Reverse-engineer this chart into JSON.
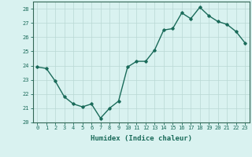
{
  "x": [
    0,
    1,
    2,
    3,
    4,
    5,
    6,
    7,
    8,
    9,
    10,
    11,
    12,
    13,
    14,
    15,
    16,
    17,
    18,
    19,
    20,
    21,
    22,
    23
  ],
  "y": [
    23.9,
    23.8,
    22.9,
    21.8,
    21.3,
    21.1,
    21.3,
    20.3,
    21.0,
    21.5,
    23.9,
    24.3,
    24.3,
    25.1,
    26.5,
    26.6,
    27.7,
    27.3,
    28.1,
    27.5,
    27.1,
    26.9,
    26.4,
    25.6
  ],
  "line_color": "#1a6b5a",
  "marker": "D",
  "marker_size": 1.8,
  "bg_color": "#d9f2f0",
  "grid_color": "#b8d8d4",
  "xlabel": "Humidex (Indice chaleur)",
  "ylim": [
    20,
    28.5
  ],
  "xlim": [
    -0.5,
    23.5
  ],
  "yticks": [
    20,
    21,
    22,
    23,
    24,
    25,
    26,
    27,
    28
  ],
  "xticks": [
    0,
    1,
    2,
    3,
    4,
    5,
    6,
    7,
    8,
    9,
    10,
    11,
    12,
    13,
    14,
    15,
    16,
    17,
    18,
    19,
    20,
    21,
    22,
    23
  ],
  "tick_fontsize": 5.0,
  "xlabel_fontsize": 6.5,
  "linewidth": 1.0,
  "spine_color": "#336655"
}
